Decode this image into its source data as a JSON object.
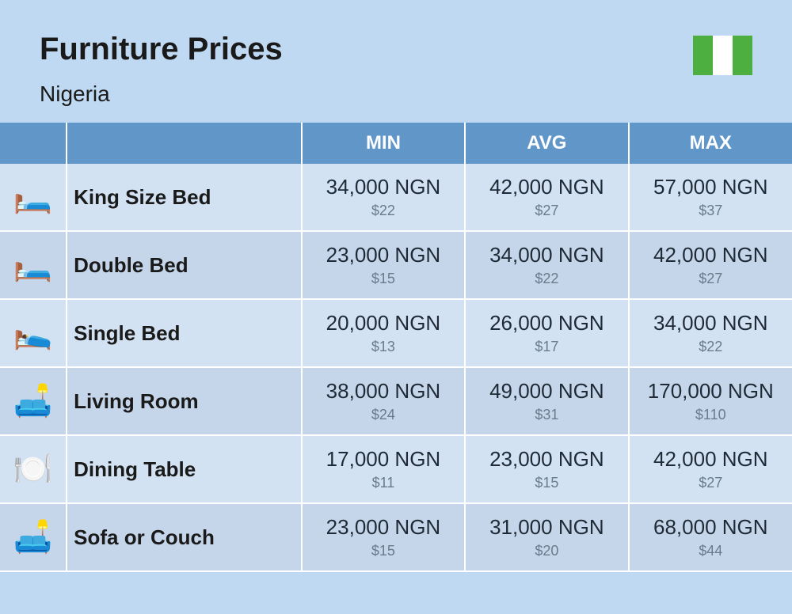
{
  "header": {
    "title": "Furniture Prices",
    "country": "Nigeria",
    "flag_colors": {
      "stripe1": "#4caf3f",
      "stripe2": "#ffffff",
      "stripe3": "#4caf3f"
    }
  },
  "table": {
    "columns": [
      "MIN",
      "AVG",
      "MAX"
    ],
    "header_bg": "#6196c9",
    "header_fg": "#ffffff",
    "row_light_bg": "#d2e2f2",
    "row_dark_bg": "#c5d6ea",
    "ngn_color": "#1f2a36",
    "usd_color": "#6a7b8d",
    "rows": [
      {
        "icon": "🛏️",
        "label": "King Size Bed",
        "min_ngn": "34,000 NGN",
        "min_usd": "$22",
        "avg_ngn": "42,000 NGN",
        "avg_usd": "$27",
        "max_ngn": "57,000 NGN",
        "max_usd": "$37"
      },
      {
        "icon": "🛏️",
        "label": "Double Bed",
        "min_ngn": "23,000 NGN",
        "min_usd": "$15",
        "avg_ngn": "34,000 NGN",
        "avg_usd": "$22",
        "max_ngn": "42,000 NGN",
        "max_usd": "$27"
      },
      {
        "icon": "🛌",
        "label": "Single Bed",
        "min_ngn": "20,000 NGN",
        "min_usd": "$13",
        "avg_ngn": "26,000 NGN",
        "avg_usd": "$17",
        "max_ngn": "34,000 NGN",
        "max_usd": "$22"
      },
      {
        "icon": "🛋️",
        "label": "Living Room",
        "min_ngn": "38,000 NGN",
        "min_usd": "$24",
        "avg_ngn": "49,000 NGN",
        "avg_usd": "$31",
        "max_ngn": "170,000 NGN",
        "max_usd": "$110"
      },
      {
        "icon": "🍽️",
        "label": "Dining Table",
        "min_ngn": "17,000 NGN",
        "min_usd": "$11",
        "avg_ngn": "23,000 NGN",
        "avg_usd": "$15",
        "max_ngn": "42,000 NGN",
        "max_usd": "$27"
      },
      {
        "icon": "🛋️",
        "label": "Sofa or Couch",
        "min_ngn": "23,000 NGN",
        "min_usd": "$15",
        "avg_ngn": "31,000 NGN",
        "avg_usd": "$20",
        "max_ngn": "68,000 NGN",
        "max_usd": "$44"
      }
    ]
  }
}
